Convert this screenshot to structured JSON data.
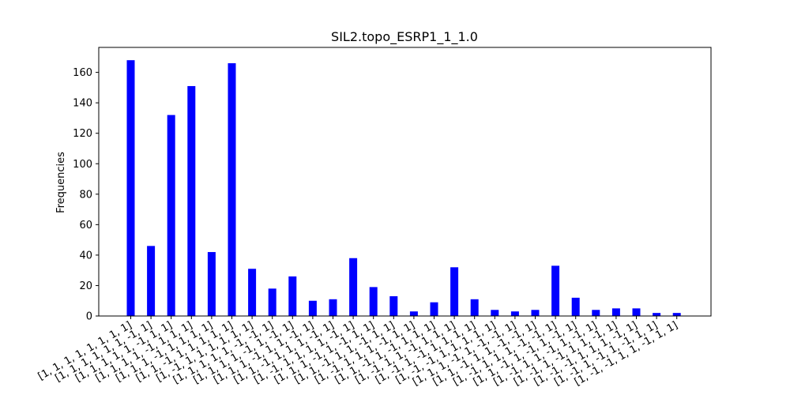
{
  "chart_data": {
    "type": "bar",
    "title": "SIL2.topo_ESRP1_1_1.0",
    "xlabel": "",
    "ylabel": "Frequencies",
    "ylim": [
      0,
      176.4
    ],
    "yticks": [
      0,
      20,
      40,
      60,
      80,
      100,
      120,
      140,
      160
    ],
    "grid": false,
    "bar_color": "#0000ff",
    "categories": [
      "[1, 1, 1, 1, 1, 1, 1, 1]",
      "[1, 1, 1, 1, 1, 1, -1, 1]",
      "[1, 1, 1, 1, 1, -1, 1, 1]",
      "[1, 1, 1, 1, -1, 1, 1, 1]",
      "[1, 1, 1, -1, 1, 1, 1, 1]",
      "[1, 1, -1, 1, 1, 1, 1, 1]",
      "[1, -1, 1, 1, 1, 1, 1, 1]",
      "[1, 1, 1, 1, 1, -1, -1, 1]",
      "[1, 1, 1, 1, -1, 1, -1, 1]",
      "[1, 1, 1, -1, 1, 1, -1, 1]",
      "[1, 1, -1, 1, 1, 1, -1, 1]",
      "[1, -1, 1, 1, 1, 1, -1, 1]",
      "[1, 1, 1, -1, 1, -1, 1, 1]",
      "[1, 1, -1, 1, 1, -1, 1, 1]",
      "[1, -1, 1, 1, 1, -1, 1, 1]",
      "[1, 1, -1, 1, -1, 1, 1, 1]",
      "[1, -1, 1, 1, -1, 1, 1, 1]",
      "[1, -1, 1, -1, 1, 1, 1, 1]",
      "[1, -1, -1, 1, 1, 1, 1, 1]",
      "[1, 1, 1, -1, 1, -1, -1, 1]",
      "[1, 1, -1, 1, 1, -1, -1, 1]",
      "[1, -1, 1, 1, 1, -1, -1, 1]",
      "[1, 1, -1, 1, -1, 1, -1, 1]",
      "[1, -1, 1, 1, -1, 1, -1, 1]",
      "[1, -1, 1, -1, 1, 1, -1, 1]",
      "[1, -1, -1, 1, 1, 1, -1, 1]",
      "[1, -1, 1, -1, 1, -1, 1, 1]",
      "[1, -1, -1, 1, 1, -1, 1, 1]"
    ],
    "values": [
      168,
      46,
      132,
      151,
      42,
      166,
      31,
      18,
      26,
      10,
      11,
      38,
      19,
      13,
      3,
      9,
      32,
      11,
      4,
      3,
      4,
      33,
      12,
      4,
      5,
      5,
      2,
      2
    ]
  }
}
